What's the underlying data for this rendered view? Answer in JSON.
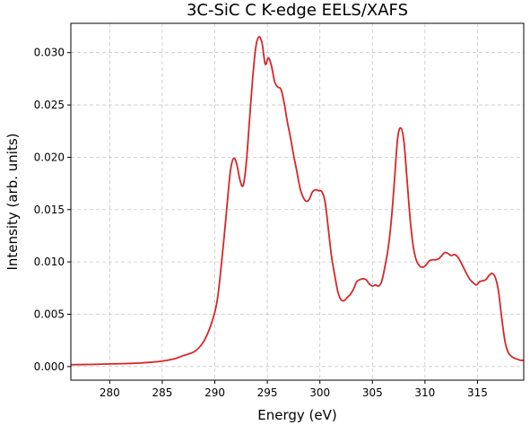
{
  "chart_data": {
    "type": "line",
    "title": "3C-SiC C K-edge EELS/XAFS",
    "xlabel": "Energy (eV)",
    "ylabel": "Intensity (arb. units)",
    "xlim": [
      276.3,
      319.4
    ],
    "ylim": [
      -0.0013,
      0.0328
    ],
    "xticks": [
      280,
      285,
      290,
      295,
      300,
      305,
      310,
      315
    ],
    "yticks": [
      0.0,
      0.005,
      0.01,
      0.015,
      0.02,
      0.025,
      0.03
    ],
    "ytick_labels": [
      "0.000",
      "0.005",
      "0.010",
      "0.015",
      "0.020",
      "0.025",
      "0.030"
    ],
    "grid": true,
    "series": [
      {
        "color": "#d62728",
        "x": [
          276.3,
          278,
          280,
          282,
          283,
          284,
          285,
          286,
          286.5,
          287,
          287.5,
          288,
          288.5,
          289,
          289.5,
          290,
          290.3,
          290.6,
          290.9,
          291.2,
          291.5,
          291.8,
          292.1,
          292.4,
          292.7,
          293.0,
          293.3,
          293.6,
          293.9,
          294.2,
          294.5,
          294.8,
          295.1,
          295.4,
          295.7,
          296.0,
          296.3,
          296.6,
          296.9,
          297.2,
          297.5,
          297.8,
          298.1,
          298.4,
          298.7,
          299.0,
          299.3,
          299.6,
          299.9,
          300.2,
          300.5,
          300.8,
          301.1,
          301.4,
          301.7,
          302.0,
          302.3,
          302.6,
          302.9,
          303.2,
          303.5,
          303.8,
          304.1,
          304.4,
          304.7,
          305.0,
          305.3,
          305.6,
          305.9,
          306.2,
          306.5,
          306.8,
          307.1,
          307.4,
          307.7,
          308.0,
          308.3,
          308.6,
          308.9,
          309.2,
          309.5,
          309.8,
          310.1,
          310.4,
          310.7,
          311.0,
          311.3,
          311.6,
          311.9,
          312.2,
          312.5,
          312.8,
          313.1,
          313.4,
          313.7,
          314.0,
          314.3,
          314.6,
          314.9,
          315.2,
          315.5,
          315.8,
          316.1,
          316.4,
          316.7,
          317.0,
          317.3,
          317.6,
          317.9,
          318.2,
          318.5,
          318.8,
          319.1,
          319.4
        ],
        "y": [
          0.00018,
          0.0002,
          0.00025,
          0.0003,
          0.00035,
          0.00042,
          0.00052,
          0.0007,
          0.00085,
          0.00105,
          0.0012,
          0.0014,
          0.0018,
          0.0025,
          0.0036,
          0.0052,
          0.0068,
          0.0095,
          0.0125,
          0.0158,
          0.0188,
          0.0199,
          0.0193,
          0.0178,
          0.0173,
          0.0195,
          0.0235,
          0.0275,
          0.0305,
          0.0315,
          0.0309,
          0.0289,
          0.0295,
          0.0287,
          0.0272,
          0.0267,
          0.0265,
          0.0252,
          0.0234,
          0.0219,
          0.0202,
          0.0187,
          0.0171,
          0.0162,
          0.0158,
          0.016,
          0.0167,
          0.0169,
          0.0168,
          0.0167,
          0.0157,
          0.0132,
          0.0106,
          0.0088,
          0.0072,
          0.0064,
          0.0063,
          0.0066,
          0.0069,
          0.0074,
          0.0081,
          0.0083,
          0.0084,
          0.0083,
          0.0079,
          0.0077,
          0.0078,
          0.0077,
          0.0082,
          0.0096,
          0.0113,
          0.014,
          0.0178,
          0.0218,
          0.0228,
          0.0215,
          0.0178,
          0.014,
          0.0114,
          0.0101,
          0.0096,
          0.0095,
          0.0097,
          0.0101,
          0.0102,
          0.0102,
          0.0103,
          0.0106,
          0.0109,
          0.0108,
          0.0106,
          0.0107,
          0.0105,
          0.01,
          0.0094,
          0.0088,
          0.0083,
          0.008,
          0.0078,
          0.0081,
          0.0082,
          0.0083,
          0.0087,
          0.0089,
          0.0085,
          0.0072,
          0.0047,
          0.0025,
          0.0014,
          0.001,
          0.0008,
          0.0007,
          0.0006,
          0.0006
        ]
      }
    ]
  }
}
